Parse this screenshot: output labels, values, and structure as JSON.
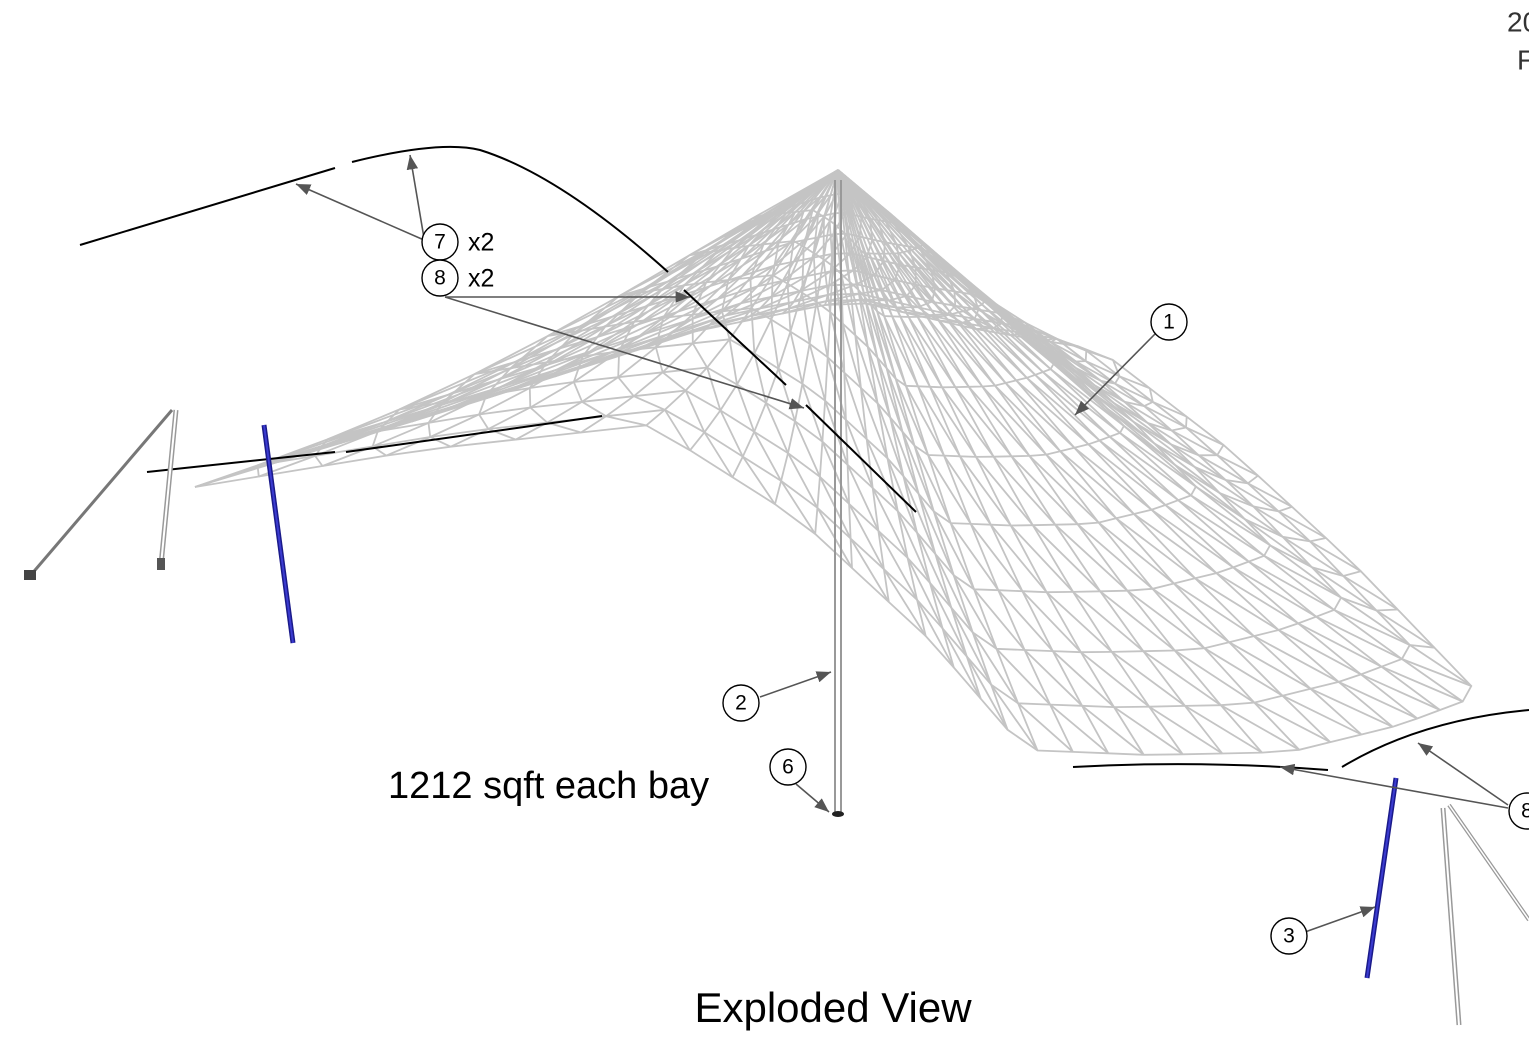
{
  "title_block": {
    "line1": "20",
    "line2": "F"
  },
  "callouts": [
    {
      "label": "7",
      "qty": "x2"
    },
    {
      "label": "8",
      "qty": "x2"
    },
    {
      "label": "1"
    },
    {
      "label": "2"
    },
    {
      "label": "6"
    },
    {
      "label": "3"
    },
    {
      "label": "8"
    }
  ],
  "area_note": "1212 sqft each bay",
  "view_title": "Exploded View"
}
